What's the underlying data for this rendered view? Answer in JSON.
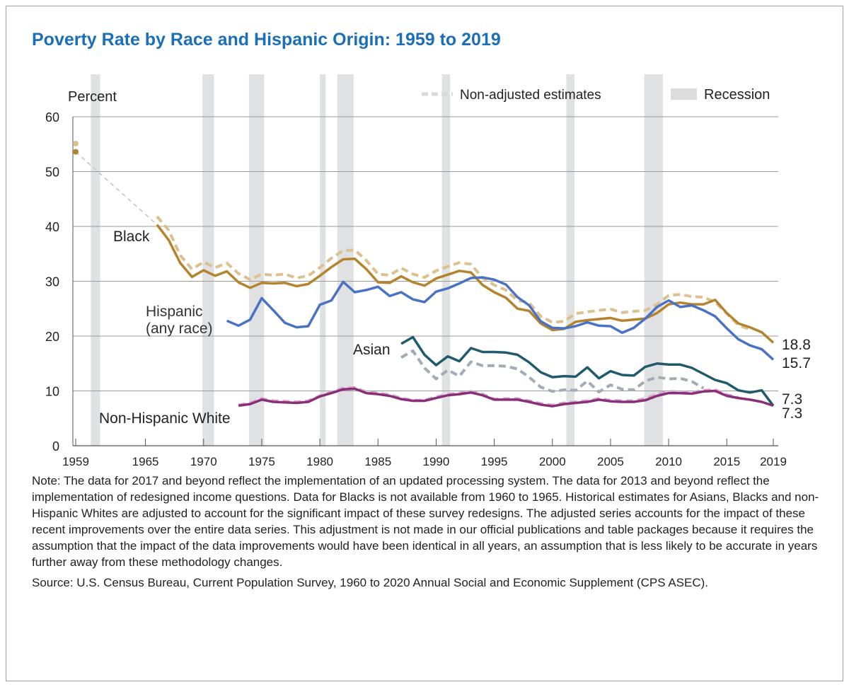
{
  "chart_data": {
    "type": "line",
    "title": "Poverty Rate by Race and Hispanic Origin: 1959 to 2019",
    "ylabel": "Percent",
    "xlabel": "",
    "ylim": [
      0,
      60
    ],
    "xlim": [
      1959,
      2019
    ],
    "yticks": [
      0,
      10,
      20,
      30,
      40,
      50,
      60
    ],
    "xticks": [
      1959,
      1965,
      1970,
      1975,
      1980,
      1985,
      1990,
      1995,
      2000,
      2005,
      2010,
      2015,
      2019
    ],
    "grid": true,
    "legend": [
      {
        "label": "Non-adjusted estimates",
        "style": "dashed",
        "color": "#d9d9d9",
        "placement": "top-right"
      },
      {
        "label": "Recession",
        "style": "band",
        "color": "#dcdcdc",
        "placement": "top-right"
      }
    ],
    "recessions": [
      [
        1960.3,
        1961.1
      ],
      [
        1969.9,
        1970.9
      ],
      [
        1973.9,
        1975.2
      ],
      [
        1980.0,
        1980.5
      ],
      [
        1981.5,
        1982.9
      ],
      [
        1990.5,
        1991.2
      ],
      [
        2001.2,
        2001.9
      ],
      [
        2007.9,
        2009.5
      ]
    ],
    "series": [
      {
        "name": "Black",
        "label": "Black",
        "color": "#b5822e",
        "dashed": false,
        "start": 1966,
        "values": [
          40.3,
          37.5,
          33.3,
          30.8,
          32.0,
          31.0,
          31.8,
          29.8,
          28.8,
          29.7,
          29.6,
          29.7,
          29.1,
          29.5,
          31.0,
          32.6,
          34.0,
          34.1,
          32.2,
          29.8,
          29.7,
          30.9,
          29.8,
          29.2,
          30.5,
          31.2,
          31.9,
          31.6,
          29.3,
          28.0,
          27.0,
          25.0,
          24.6,
          22.3,
          21.1,
          21.3,
          22.6,
          22.9,
          23.1,
          23.3,
          22.8,
          23.0,
          23.2,
          24.2,
          25.8,
          26.1,
          25.8,
          25.8,
          26.6,
          24.2,
          22.3,
          21.6,
          20.7,
          18.8
        ],
        "point_1959": 53.6,
        "end_label": "18.8"
      },
      {
        "name": "Black non-adjusted",
        "color": "#dcc08e",
        "dashed": true,
        "start": 1966,
        "values": [
          41.8,
          39.3,
          34.7,
          32.2,
          33.5,
          32.5,
          33.3,
          31.4,
          30.3,
          31.3,
          31.1,
          31.3,
          30.6,
          31.0,
          32.5,
          34.2,
          35.6,
          35.7,
          33.8,
          31.3,
          31.1,
          32.4,
          31.3,
          30.7,
          31.9,
          32.7,
          33.4,
          33.1,
          30.6,
          29.3,
          28.4,
          26.5,
          26.1,
          23.6,
          22.5,
          22.7,
          24.1,
          24.4,
          24.7,
          24.9,
          24.3,
          24.5,
          24.7,
          25.8,
          27.4,
          27.6,
          27.2,
          27.1,
          26.2,
          24.1,
          22.0,
          21.2
        ],
        "point_1959": 55.1
      },
      {
        "name": "Hispanic (any race)",
        "label": "Hispanic",
        "label2": "(any race)",
        "color": "#4a72c4",
        "dashed": false,
        "start": 1972,
        "values": [
          22.8,
          21.9,
          23.0,
          26.9,
          24.7,
          22.4,
          21.6,
          21.8,
          25.7,
          26.5,
          29.9,
          28.0,
          28.4,
          29.0,
          27.3,
          28.0,
          26.7,
          26.2,
          28.1,
          28.7,
          29.6,
          30.6,
          30.7,
          30.3,
          29.4,
          27.1,
          25.6,
          22.7,
          21.5,
          21.4,
          21.8,
          22.5,
          21.9,
          21.8,
          20.6,
          21.5,
          23.2,
          25.3,
          26.5,
          25.3,
          25.6,
          24.7,
          23.6,
          21.4,
          19.4,
          18.3,
          17.6,
          15.7
        ],
        "end_label": "15.7"
      },
      {
        "name": "Asian non-adjusted",
        "color": "#a3abb7",
        "dashed": true,
        "start": 1987,
        "values": [
          16.1,
          17.3,
          14.2,
          12.2,
          13.8,
          12.7,
          15.3,
          14.6,
          14.6,
          14.5,
          14.0,
          12.5,
          10.7,
          9.9,
          10.2,
          10.1,
          11.8,
          9.8,
          11.1,
          10.3,
          10.2,
          11.8,
          12.5,
          12.2,
          12.3,
          11.7,
          10.5
        ]
      },
      {
        "name": "Asian",
        "label": "Asian",
        "color": "#1f5b6c",
        "dashed": false,
        "start": 1987,
        "values": [
          18.6,
          19.8,
          16.6,
          14.7,
          16.3,
          15.4,
          17.8,
          17.1,
          17.1,
          17.0,
          16.6,
          15.2,
          13.4,
          12.5,
          12.7,
          12.6,
          14.3,
          12.3,
          13.6,
          12.9,
          12.8,
          14.4,
          15.0,
          14.8,
          14.8,
          14.2,
          13.1,
          12.0,
          11.4,
          10.1,
          9.7,
          10.1,
          7.3
        ],
        "end_label": "7.3"
      },
      {
        "name": "Non-Hispanic White",
        "label": "Non-Hispanic White",
        "color": "#8a2e78",
        "dashed": false,
        "start": 1973,
        "values": [
          7.3,
          7.6,
          8.4,
          8.0,
          7.9,
          7.8,
          8.0,
          9.0,
          9.6,
          10.3,
          10.4,
          9.6,
          9.4,
          9.1,
          8.5,
          8.2,
          8.2,
          8.7,
          9.2,
          9.4,
          9.7,
          9.2,
          8.4,
          8.4,
          8.4,
          8.0,
          7.5,
          7.2,
          7.6,
          7.8,
          8.0,
          8.4,
          8.1,
          8.0,
          8.0,
          8.3,
          9.1,
          9.6,
          9.6,
          9.5,
          9.9,
          10.0,
          9.1,
          8.7,
          8.4,
          8.0,
          7.3
        ],
        "end_label": "7.3"
      },
      {
        "name": "Non-Hispanic White non-adjusted",
        "color": "#d4a7cc",
        "dashed": true,
        "start": 1973,
        "values": [
          7.4,
          7.8,
          8.6,
          8.2,
          8.1,
          8.0,
          8.2,
          9.1,
          9.8,
          10.5,
          10.6,
          9.8,
          9.6,
          9.3,
          8.7,
          8.3,
          8.3,
          8.9,
          9.4,
          9.6,
          9.9,
          9.4,
          8.5,
          8.6,
          8.6,
          8.2,
          7.7,
          7.4,
          7.8,
          8.0,
          8.2,
          8.6,
          8.3,
          8.2,
          8.2,
          8.6,
          9.4,
          9.9,
          9.8,
          9.7,
          10.1,
          10.2,
          9.3,
          8.8
        ]
      }
    ]
  },
  "notes": {
    "note": "Note: The data for 2017 and beyond reflect the implementation of an updated processing system. The data for 2013 and beyond reflect the implementation of redesigned income questions. Data for Blacks is not available from 1960 to 1965. Historical estimates for Asians, Blacks and non-Hispanic Whites are adjusted to account for the significant impact of these survey redesigns. The adjusted series accounts for the impact of these recent improvements over the entire data series. This adjustment is not made in our official publications and table packages because it requires the assumption that the impact of the data improvements would have been identical in all years, an assumption that is less likely to be accurate in years further away from these methodology changes.",
    "source": "Source: U.S. Census Bureau, Current Population Survey, 1960 to 2020 Annual Social and Economic Supplement (CPS ASEC)."
  }
}
